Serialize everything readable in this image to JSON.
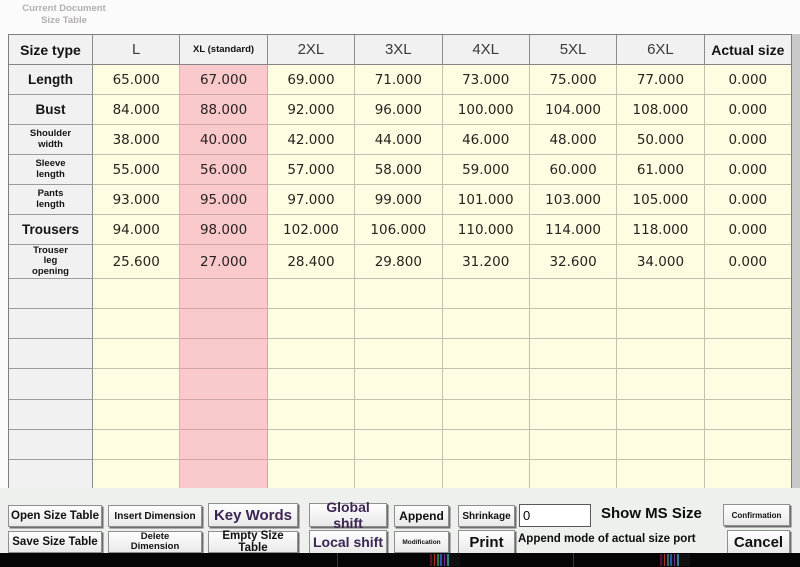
{
  "page": {
    "doc_label": "Current Document\nSize Table"
  },
  "table": {
    "columns": [
      {
        "label": "Size type",
        "style": "bold"
      },
      {
        "label": "L",
        "style": "plain"
      },
      {
        "label": "XL (standard)",
        "style": "small-bold",
        "highlight": true
      },
      {
        "label": "2XL",
        "style": "plain"
      },
      {
        "label": "3XL",
        "style": "plain"
      },
      {
        "label": "4XL",
        "style": "plain"
      },
      {
        "label": "5XL",
        "style": "plain"
      },
      {
        "label": "6XL",
        "style": "plain"
      },
      {
        "label": "Actual size",
        "style": "bold"
      }
    ],
    "highlight_column_index": 2,
    "rows": [
      {
        "label": "Length",
        "label_size": "large",
        "tall": false,
        "values": [
          "65.000",
          "67.000",
          "69.000",
          "71.000",
          "73.000",
          "75.000",
          "77.000",
          "0.000"
        ]
      },
      {
        "label": "Bust",
        "label_size": "large",
        "tall": false,
        "values": [
          "84.000",
          "88.000",
          "92.000",
          "96.000",
          "100.000",
          "104.000",
          "108.000",
          "0.000"
        ]
      },
      {
        "label": "Shoulder\nwidth",
        "label_size": "small",
        "tall": false,
        "values": [
          "38.000",
          "40.000",
          "42.000",
          "44.000",
          "46.000",
          "48.000",
          "50.000",
          "0.000"
        ]
      },
      {
        "label": "Sleeve\nlength",
        "label_size": "small",
        "tall": false,
        "values": [
          "55.000",
          "56.000",
          "57.000",
          "58.000",
          "59.000",
          "60.000",
          "61.000",
          "0.000"
        ]
      },
      {
        "label": "Pants\nlength",
        "label_size": "small",
        "tall": false,
        "values": [
          "93.000",
          "95.000",
          "97.000",
          "99.000",
          "101.000",
          "103.000",
          "105.000",
          "0.000"
        ]
      },
      {
        "label": "Trousers",
        "label_size": "large",
        "tall": false,
        "values": [
          "94.000",
          "98.000",
          "102.000",
          "106.000",
          "110.000",
          "114.000",
          "118.000",
          "0.000"
        ]
      },
      {
        "label": "Trouser\nleg\nopening",
        "label_size": "small",
        "tall": true,
        "values": [
          "25.600",
          "27.000",
          "28.400",
          "29.800",
          "31.200",
          "32.600",
          "34.000",
          "0.000"
        ]
      }
    ],
    "empty_row_count": 7
  },
  "toolbar": {
    "open": "Open Size Table",
    "save": "Save Size Table",
    "insert": "Insert Dimension",
    "delete": "Delete\nDimension",
    "keywords": "Key Words",
    "empty": "Empty Size Table",
    "global_shift": "Global shift",
    "local_shift": "Local shift",
    "append": "Append",
    "modification": "Modification",
    "shrinkage": "Shrinkage",
    "print": "Print",
    "confirmation": "Confirmation",
    "cancel": "Cancel",
    "shrinkage_value": "0",
    "show_ms_size": "Show MS Size",
    "append_mode_label": "Append mode of actual size port"
  },
  "colors": {
    "cell_yellow": "#fffde1",
    "cell_pink": "#f9c9cb",
    "header_gray": "#f1f1f1",
    "accent_text": "#3c2552"
  }
}
